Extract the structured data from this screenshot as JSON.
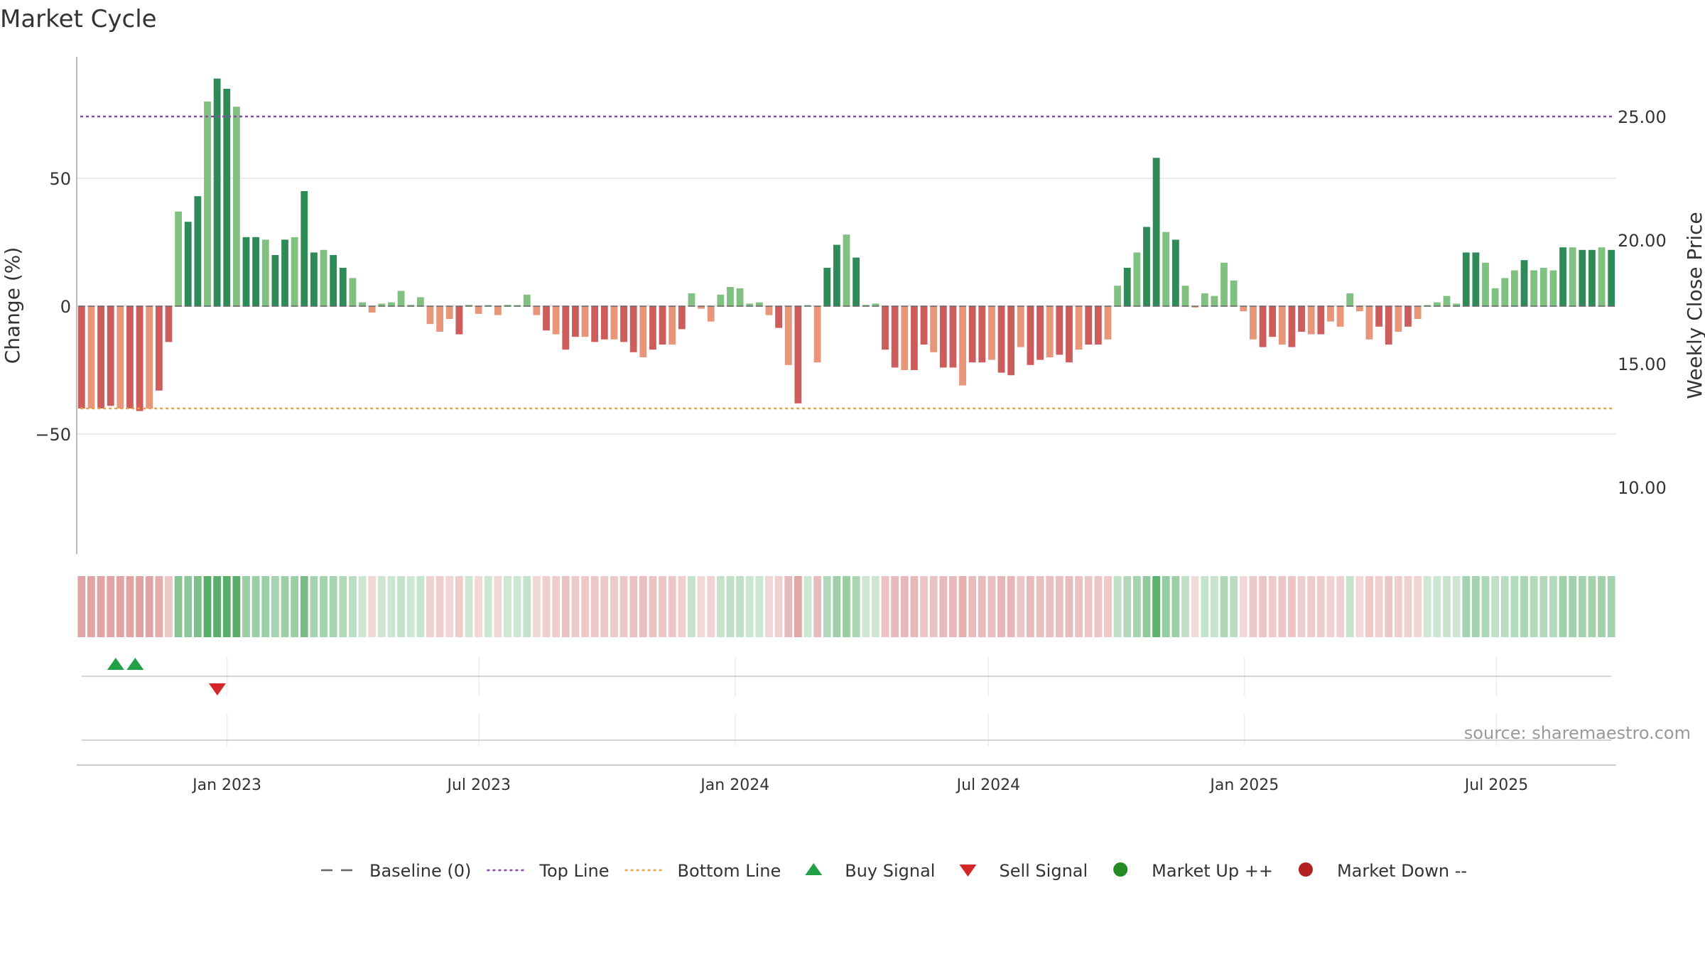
{
  "chart_data": {
    "type": "bar",
    "title": "Market Cycle",
    "ylabel_left": "Change (%)",
    "ylabel_right": "Weekly Close Price",
    "source": "source: sharemaestro.com",
    "y_left_ticks": [
      50,
      0,
      -50
    ],
    "y_left_tick_labels": [
      "50",
      "0",
      "−50"
    ],
    "ylim_left": [
      -97,
      97
    ],
    "y_right_ticks": [
      25,
      20,
      15,
      10
    ],
    "y_right_tick_labels": [
      "25.00",
      "20.00",
      "15.00",
      "10.00"
    ],
    "ylim_right": [
      7.5,
      27.7
    ],
    "top_line_price": 25.0,
    "bottom_line_pct": -40,
    "x_start": "2022-09-15",
    "x_end": "2025-09-25",
    "x_ticks": [
      "2023-01-01",
      "2023-07-01",
      "2024-01-01",
      "2024-07-01",
      "2025-01-01",
      "2025-07-01"
    ],
    "x_tick_labels": [
      "Jan 2023",
      "Jul 2023",
      "Jan 2024",
      "Jul 2024",
      "Jan 2025",
      "Jul 2025"
    ],
    "grid": true,
    "colors": {
      "strong_up": "#2e8b57",
      "weak_up": "#80c080",
      "strong_down": "#cd5c5c",
      "weak_down": "#e8967a",
      "top_line": "#8e44ad",
      "bottom_line": "#f0a040",
      "buy": "#22a045",
      "sell": "#d62728",
      "market_up": "#228b22",
      "market_down": "#b22222"
    },
    "weekly_change": [
      {
        "date": "2022-09-16",
        "value": -40
      },
      {
        "date": "2022-09-23",
        "value": -40
      },
      {
        "date": "2022-09-30",
        "value": -40
      },
      {
        "date": "2022-10-07",
        "value": -39
      },
      {
        "date": "2022-10-14",
        "value": -40
      },
      {
        "date": "2022-10-21",
        "value": -40
      },
      {
        "date": "2022-10-28",
        "value": -41
      },
      {
        "date": "2022-11-04",
        "value": -40
      },
      {
        "date": "2022-11-11",
        "value": -33
      },
      {
        "date": "2022-11-18",
        "value": -14
      },
      {
        "date": "2022-11-25",
        "value": 37
      },
      {
        "date": "2022-12-02",
        "value": 33
      },
      {
        "date": "2022-12-09",
        "value": 43
      },
      {
        "date": "2022-12-16",
        "value": 80
      },
      {
        "date": "2022-12-23",
        "value": 89
      },
      {
        "date": "2022-12-30",
        "value": 85
      },
      {
        "date": "2023-01-06",
        "value": 78
      },
      {
        "date": "2023-01-13",
        "value": 27
      },
      {
        "date": "2023-01-20",
        "value": 27
      },
      {
        "date": "2023-01-27",
        "value": 26
      },
      {
        "date": "2023-02-03",
        "value": 20
      },
      {
        "date": "2023-02-10",
        "value": 26
      },
      {
        "date": "2023-02-17",
        "value": 27
      },
      {
        "date": "2023-02-24",
        "value": 45
      },
      {
        "date": "2023-03-03",
        "value": 21
      },
      {
        "date": "2023-03-10",
        "value": 22
      },
      {
        "date": "2023-03-17",
        "value": 20
      },
      {
        "date": "2023-03-24",
        "value": 15
      },
      {
        "date": "2023-03-31",
        "value": 11
      },
      {
        "date": "2023-04-07",
        "value": 1.5
      },
      {
        "date": "2023-04-14",
        "value": -2.5
      },
      {
        "date": "2023-04-21",
        "value": 1
      },
      {
        "date": "2023-04-28",
        "value": 1.5
      },
      {
        "date": "2023-05-05",
        "value": 6
      },
      {
        "date": "2023-05-12",
        "value": 0.5
      },
      {
        "date": "2023-05-19",
        "value": 3.5
      },
      {
        "date": "2023-05-26",
        "value": -7
      },
      {
        "date": "2023-06-02",
        "value": -10
      },
      {
        "date": "2023-06-09",
        "value": -5
      },
      {
        "date": "2023-06-16",
        "value": -11
      },
      {
        "date": "2023-06-23",
        "value": 0.5
      },
      {
        "date": "2023-06-30",
        "value": -3
      },
      {
        "date": "2023-07-07",
        "value": 0
      },
      {
        "date": "2023-07-14",
        "value": -3.5
      },
      {
        "date": "2023-07-21",
        "value": 0.5
      },
      {
        "date": "2023-07-28",
        "value": 0
      },
      {
        "date": "2023-08-04",
        "value": 4.5
      },
      {
        "date": "2023-08-11",
        "value": -3.5
      },
      {
        "date": "2023-08-18",
        "value": -9.5
      },
      {
        "date": "2023-08-25",
        "value": -11
      },
      {
        "date": "2023-09-01",
        "value": -17
      },
      {
        "date": "2023-09-08",
        "value": -12
      },
      {
        "date": "2023-09-15",
        "value": -12
      },
      {
        "date": "2023-09-22",
        "value": -14
      },
      {
        "date": "2023-09-29",
        "value": -13
      },
      {
        "date": "2023-10-06",
        "value": -13
      },
      {
        "date": "2023-10-13",
        "value": -14
      },
      {
        "date": "2023-10-20",
        "value": -18
      },
      {
        "date": "2023-10-27",
        "value": -20
      },
      {
        "date": "2023-11-03",
        "value": -17
      },
      {
        "date": "2023-11-10",
        "value": -15
      },
      {
        "date": "2023-11-17",
        "value": -15
      },
      {
        "date": "2023-11-24",
        "value": -9
      },
      {
        "date": "2023-12-01",
        "value": 5
      },
      {
        "date": "2023-12-08",
        "value": -1
      },
      {
        "date": "2023-12-15",
        "value": -6
      },
      {
        "date": "2023-12-22",
        "value": 4.5
      },
      {
        "date": "2023-12-29",
        "value": 7.5
      },
      {
        "date": "2024-01-05",
        "value": 7
      },
      {
        "date": "2024-01-12",
        "value": 1
      },
      {
        "date": "2024-01-19",
        "value": 1.5
      },
      {
        "date": "2024-01-26",
        "value": -3.5
      },
      {
        "date": "2024-02-02",
        "value": -8.5
      },
      {
        "date": "2024-02-09",
        "value": -23
      },
      {
        "date": "2024-02-16",
        "value": -38
      },
      {
        "date": "2024-02-23",
        "value": 0
      },
      {
        "date": "2024-03-01",
        "value": -22
      },
      {
        "date": "2024-03-08",
        "value": 15
      },
      {
        "date": "2024-03-15",
        "value": 24
      },
      {
        "date": "2024-03-22",
        "value": 28
      },
      {
        "date": "2024-03-29",
        "value": 19
      },
      {
        "date": "2024-04-05",
        "value": 0.5
      },
      {
        "date": "2024-04-12",
        "value": 1
      },
      {
        "date": "2024-04-19",
        "value": -17
      },
      {
        "date": "2024-04-26",
        "value": -24
      },
      {
        "date": "2024-05-03",
        "value": -25
      },
      {
        "date": "2024-05-10",
        "value": -25
      },
      {
        "date": "2024-05-17",
        "value": -15
      },
      {
        "date": "2024-05-24",
        "value": -18
      },
      {
        "date": "2024-05-31",
        "value": -24
      },
      {
        "date": "2024-06-07",
        "value": -24
      },
      {
        "date": "2024-06-14",
        "value": -31
      },
      {
        "date": "2024-06-21",
        "value": -22
      },
      {
        "date": "2024-06-28",
        "value": -22
      },
      {
        "date": "2024-07-05",
        "value": -21
      },
      {
        "date": "2024-07-12",
        "value": -26
      },
      {
        "date": "2024-07-19",
        "value": -27
      },
      {
        "date": "2024-07-26",
        "value": -16
      },
      {
        "date": "2024-08-02",
        "value": -23
      },
      {
        "date": "2024-08-09",
        "value": -21
      },
      {
        "date": "2024-08-16",
        "value": -20
      },
      {
        "date": "2024-08-23",
        "value": -19
      },
      {
        "date": "2024-08-30",
        "value": -22
      },
      {
        "date": "2024-09-06",
        "value": -17
      },
      {
        "date": "2024-09-13",
        "value": -15
      },
      {
        "date": "2024-09-20",
        "value": -15
      },
      {
        "date": "2024-09-27",
        "value": -13
      },
      {
        "date": "2024-10-04",
        "value": 8
      },
      {
        "date": "2024-10-11",
        "value": 15
      },
      {
        "date": "2024-10-18",
        "value": 21
      },
      {
        "date": "2024-10-25",
        "value": 31
      },
      {
        "date": "2024-11-01",
        "value": 58
      },
      {
        "date": "2024-11-08",
        "value": 29
      },
      {
        "date": "2024-11-15",
        "value": 26
      },
      {
        "date": "2024-11-22",
        "value": 8
      },
      {
        "date": "2024-11-29",
        "value": -0.5
      },
      {
        "date": "2024-12-06",
        "value": 5
      },
      {
        "date": "2024-12-13",
        "value": 4
      },
      {
        "date": "2024-12-20",
        "value": 17
      },
      {
        "date": "2024-12-27",
        "value": 10
      },
      {
        "date": "2025-01-03",
        "value": -2
      },
      {
        "date": "2025-01-10",
        "value": -13
      },
      {
        "date": "2025-01-17",
        "value": -16
      },
      {
        "date": "2025-01-24",
        "value": -12
      },
      {
        "date": "2025-01-31",
        "value": -15
      },
      {
        "date": "2025-02-07",
        "value": -16
      },
      {
        "date": "2025-02-14",
        "value": -10
      },
      {
        "date": "2025-02-21",
        "value": -11
      },
      {
        "date": "2025-02-28",
        "value": -11
      },
      {
        "date": "2025-03-07",
        "value": -6
      },
      {
        "date": "2025-03-14",
        "value": -8
      },
      {
        "date": "2025-03-21",
        "value": 5
      },
      {
        "date": "2025-03-28",
        "value": -2
      },
      {
        "date": "2025-04-04",
        "value": -13
      },
      {
        "date": "2025-04-11",
        "value": -8
      },
      {
        "date": "2025-04-18",
        "value": -15
      },
      {
        "date": "2025-04-25",
        "value": -10
      },
      {
        "date": "2025-05-02",
        "value": -8
      },
      {
        "date": "2025-05-09",
        "value": -5
      },
      {
        "date": "2025-05-16",
        "value": 0
      },
      {
        "date": "2025-05-23",
        "value": 1.5
      },
      {
        "date": "2025-05-30",
        "value": 4
      },
      {
        "date": "2025-06-06",
        "value": 1
      },
      {
        "date": "2025-06-13",
        "value": 21
      },
      {
        "date": "2025-06-20",
        "value": 21
      },
      {
        "date": "2025-06-27",
        "value": 17
      },
      {
        "date": "2025-07-04",
        "value": 7
      },
      {
        "date": "2025-07-11",
        "value": 11
      },
      {
        "date": "2025-07-18",
        "value": 14
      },
      {
        "date": "2025-07-25",
        "value": 18
      },
      {
        "date": "2025-08-01",
        "value": 14
      },
      {
        "date": "2025-08-08",
        "value": 15
      },
      {
        "date": "2025-08-15",
        "value": 14
      },
      {
        "date": "2025-08-22",
        "value": 23
      },
      {
        "date": "2025-08-29",
        "value": 23
      },
      {
        "date": "2025-09-05",
        "value": 22
      },
      {
        "date": "2025-09-12",
        "value": 22
      },
      {
        "date": "2025-09-19",
        "value": 23
      },
      {
        "date": "2025-09-26",
        "value": 22
      }
    ],
    "buy_signals": [
      "2022-10-13",
      "2022-10-27"
    ],
    "sell_signals": [
      "2022-12-25"
    ],
    "legend": {
      "position": "bottom-center",
      "items": [
        {
          "key": "baseline",
          "label": "Baseline (0)"
        },
        {
          "key": "top",
          "label": "Top Line"
        },
        {
          "key": "bottom",
          "label": "Bottom Line"
        },
        {
          "key": "buy",
          "label": "Buy Signal"
        },
        {
          "key": "sell",
          "label": "Sell Signal"
        },
        {
          "key": "up",
          "label": "Market Up ++"
        },
        {
          "key": "down",
          "label": "Market Down --"
        }
      ]
    }
  }
}
